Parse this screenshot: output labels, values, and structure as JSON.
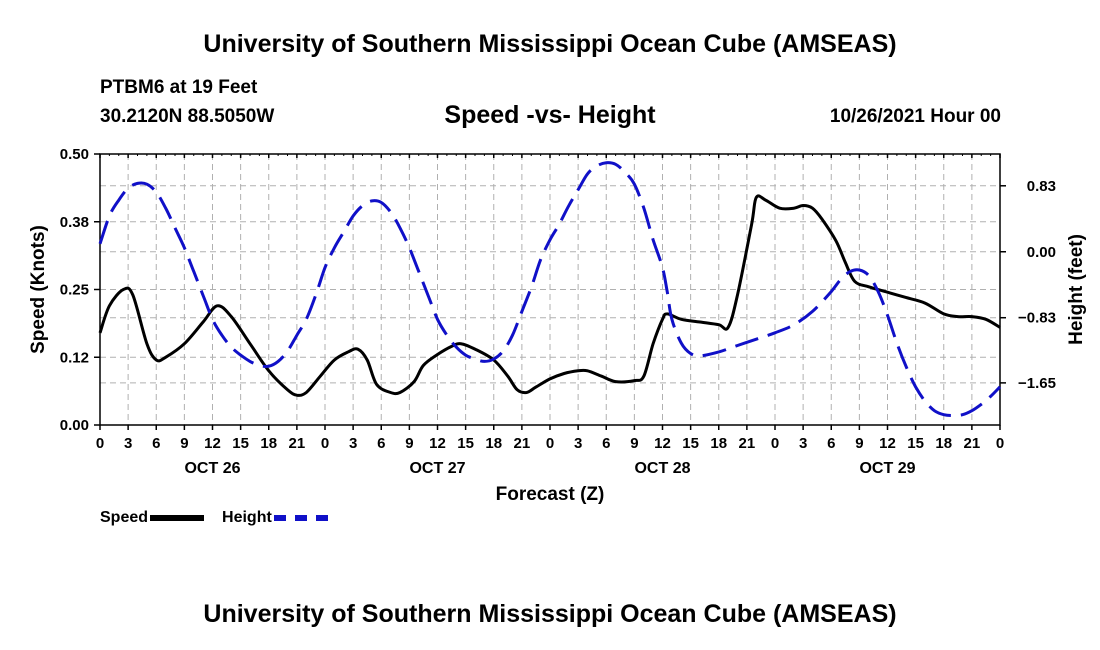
{
  "header": {
    "title_top": "University of Southern Mississippi Ocean Cube (AMSEAS)",
    "title_bottom": "University of Southern Mississippi Ocean Cube (AMSEAS)",
    "station": "PTBM6 at 19 Feet",
    "coords": "30.2120N  88.5050W",
    "subtitle": "Speed -vs- Height",
    "datetime": "10/26/2021 Hour 00"
  },
  "legend": {
    "speed_label": "Speed",
    "height_label": "Height"
  },
  "colors": {
    "speed": "#000000",
    "height": "#1010c8",
    "grid": "#b0b0b0"
  },
  "chart_data": {
    "type": "line",
    "xlabel": "Forecast (Z)",
    "ylabel_left": "Speed (Knots)",
    "ylabel_right": "Height (feet)",
    "x_range_hours": [
      0,
      96
    ],
    "ylim_left": [
      0,
      0.5
    ],
    "ylim_right": [
      -2.18,
      1.23
    ],
    "left_ticks": [
      {
        "value": 0.0,
        "label": "0.00"
      },
      {
        "value": 0.125,
        "label": "0.12"
      },
      {
        "value": 0.25,
        "label": "0.25"
      },
      {
        "value": 0.375,
        "label": "0.38"
      },
      {
        "value": 0.5,
        "label": "0.50"
      }
    ],
    "right_ticks": [
      {
        "value": 0.83,
        "label": "0.83"
      },
      {
        "value": 0.0,
        "label": "0.00"
      },
      {
        "value": -0.83,
        "label": "−0.83"
      },
      {
        "value": -1.65,
        "label": "−1.65"
      }
    ],
    "x_ticks": [
      {
        "hour": 0,
        "label": "0"
      },
      {
        "hour": 3,
        "label": "3"
      },
      {
        "hour": 6,
        "label": "6"
      },
      {
        "hour": 9,
        "label": "9"
      },
      {
        "hour": 12,
        "label": "12"
      },
      {
        "hour": 15,
        "label": "15"
      },
      {
        "hour": 18,
        "label": "18"
      },
      {
        "hour": 21,
        "label": "21"
      },
      {
        "hour": 24,
        "label": "0"
      },
      {
        "hour": 27,
        "label": "3"
      },
      {
        "hour": 30,
        "label": "6"
      },
      {
        "hour": 33,
        "label": "9"
      },
      {
        "hour": 36,
        "label": "12"
      },
      {
        "hour": 39,
        "label": "15"
      },
      {
        "hour": 42,
        "label": "18"
      },
      {
        "hour": 45,
        "label": "21"
      },
      {
        "hour": 48,
        "label": "0"
      },
      {
        "hour": 51,
        "label": "3"
      },
      {
        "hour": 54,
        "label": "6"
      },
      {
        "hour": 57,
        "label": "9"
      },
      {
        "hour": 60,
        "label": "12"
      },
      {
        "hour": 63,
        "label": "15"
      },
      {
        "hour": 66,
        "label": "18"
      },
      {
        "hour": 69,
        "label": "21"
      },
      {
        "hour": 72,
        "label": "0"
      },
      {
        "hour": 75,
        "label": "3"
      },
      {
        "hour": 78,
        "label": "6"
      },
      {
        "hour": 81,
        "label": "9"
      },
      {
        "hour": 84,
        "label": "12"
      },
      {
        "hour": 87,
        "label": "15"
      },
      {
        "hour": 90,
        "label": "18"
      },
      {
        "hour": 93,
        "label": "21"
      },
      {
        "hour": 96,
        "label": "0"
      }
    ],
    "day_labels": [
      {
        "hour": 12,
        "label": "OCT 26"
      },
      {
        "hour": 36,
        "label": "OCT 27"
      },
      {
        "hour": 60,
        "label": "OCT 28"
      },
      {
        "hour": 84,
        "label": "OCT 29"
      }
    ],
    "series": [
      {
        "name": "Speed",
        "axis": "left",
        "style": "solid",
        "points": [
          [
            0,
            0.17
          ],
          [
            1,
            0.22
          ],
          [
            2.5,
            0.25
          ],
          [
            3.5,
            0.24
          ],
          [
            5,
            0.15
          ],
          [
            6,
            0.12
          ],
          [
            7,
            0.125
          ],
          [
            9,
            0.15
          ],
          [
            11,
            0.19
          ],
          [
            12.5,
            0.22
          ],
          [
            14,
            0.2
          ],
          [
            16,
            0.15
          ],
          [
            18,
            0.1
          ],
          [
            20,
            0.065
          ],
          [
            21,
            0.055
          ],
          [
            22,
            0.06
          ],
          [
            23.5,
            0.09
          ],
          [
            25,
            0.12
          ],
          [
            26.5,
            0.135
          ],
          [
            27.5,
            0.14
          ],
          [
            28.5,
            0.12
          ],
          [
            29.5,
            0.075
          ],
          [
            31,
            0.06
          ],
          [
            32,
            0.06
          ],
          [
            33.5,
            0.08
          ],
          [
            34.5,
            0.11
          ],
          [
            36,
            0.13
          ],
          [
            37.5,
            0.145
          ],
          [
            38.5,
            0.15
          ],
          [
            40,
            0.14
          ],
          [
            42,
            0.12
          ],
          [
            43.5,
            0.09
          ],
          [
            44.5,
            0.065
          ],
          [
            45.5,
            0.06
          ],
          [
            46.5,
            0.07
          ],
          [
            48,
            0.085
          ],
          [
            49.5,
            0.095
          ],
          [
            51,
            0.1
          ],
          [
            52,
            0.1
          ],
          [
            53.5,
            0.09
          ],
          [
            55,
            0.08
          ],
          [
            57,
            0.082
          ],
          [
            58,
            0.09
          ],
          [
            59,
            0.15
          ],
          [
            60,
            0.195
          ],
          [
            60.5,
            0.205
          ],
          [
            62,
            0.195
          ],
          [
            64,
            0.19
          ],
          [
            66,
            0.185
          ],
          [
            67,
            0.18
          ],
          [
            68,
            0.24
          ],
          [
            69.5,
            0.37
          ],
          [
            70,
            0.42
          ],
          [
            71,
            0.415
          ],
          [
            72.5,
            0.4
          ],
          [
            74,
            0.4
          ],
          [
            75,
            0.405
          ],
          [
            76,
            0.4
          ],
          [
            77,
            0.38
          ],
          [
            78.5,
            0.34
          ],
          [
            79.5,
            0.3
          ],
          [
            80.5,
            0.265
          ],
          [
            82,
            0.255
          ],
          [
            84,
            0.245
          ],
          [
            86,
            0.235
          ],
          [
            88,
            0.225
          ],
          [
            90,
            0.205
          ],
          [
            91.5,
            0.2
          ],
          [
            93,
            0.2
          ],
          [
            94.5,
            0.195
          ],
          [
            96,
            0.18
          ]
        ]
      },
      {
        "name": "Height",
        "axis": "right",
        "style": "dashed",
        "points": [
          [
            0,
            0.1
          ],
          [
            1,
            0.45
          ],
          [
            2,
            0.65
          ],
          [
            3,
            0.8
          ],
          [
            4,
            0.86
          ],
          [
            5,
            0.85
          ],
          [
            6,
            0.75
          ],
          [
            7,
            0.55
          ],
          [
            8,
            0.3
          ],
          [
            9,
            0.05
          ],
          [
            10,
            -0.25
          ],
          [
            11,
            -0.55
          ],
          [
            12,
            -0.85
          ],
          [
            13,
            -1.05
          ],
          [
            14,
            -1.2
          ],
          [
            15,
            -1.3
          ],
          [
            16,
            -1.38
          ],
          [
            17,
            -1.43
          ],
          [
            18,
            -1.44
          ],
          [
            19,
            -1.38
          ],
          [
            20,
            -1.25
          ],
          [
            21,
            -1.05
          ],
          [
            22,
            -0.85
          ],
          [
            23,
            -0.55
          ],
          [
            24,
            -0.2
          ],
          [
            25,
            0.05
          ],
          [
            26,
            0.25
          ],
          [
            27,
            0.45
          ],
          [
            28,
            0.58
          ],
          [
            29,
            0.64
          ],
          [
            30,
            0.62
          ],
          [
            31,
            0.5
          ],
          [
            32,
            0.3
          ],
          [
            33,
            0.05
          ],
          [
            34,
            -0.25
          ],
          [
            35,
            -0.55
          ],
          [
            36,
            -0.85
          ],
          [
            37,
            -1.05
          ],
          [
            38,
            -1.2
          ],
          [
            39,
            -1.3
          ],
          [
            40,
            -1.35
          ],
          [
            41,
            -1.38
          ],
          [
            42,
            -1.35
          ],
          [
            43,
            -1.25
          ],
          [
            44,
            -1.05
          ],
          [
            45,
            -0.75
          ],
          [
            46,
            -0.45
          ],
          [
            47,
            -0.1
          ],
          [
            48,
            0.15
          ],
          [
            49,
            0.35
          ],
          [
            50,
            0.58
          ],
          [
            51,
            0.78
          ],
          [
            52,
            0.98
          ],
          [
            53,
            1.08
          ],
          [
            54,
            1.12
          ],
          [
            55,
            1.1
          ],
          [
            56,
            1.0
          ],
          [
            57,
            0.85
          ],
          [
            58,
            0.55
          ],
          [
            59,
            0.15
          ],
          [
            60,
            -0.2
          ],
          [
            60.5,
            -0.5
          ],
          [
            61,
            -0.85
          ],
          [
            62,
            -1.15
          ],
          [
            63,
            -1.28
          ],
          [
            64,
            -1.31
          ],
          [
            66,
            -1.26
          ],
          [
            68,
            -1.18
          ],
          [
            70,
            -1.1
          ],
          [
            72,
            -1.02
          ],
          [
            74,
            -0.92
          ],
          [
            76,
            -0.75
          ],
          [
            78,
            -0.5
          ],
          [
            79,
            -0.35
          ],
          [
            80,
            -0.25
          ],
          [
            81,
            -0.23
          ],
          [
            82,
            -0.3
          ],
          [
            83,
            -0.5
          ],
          [
            84,
            -0.8
          ],
          [
            85,
            -1.15
          ],
          [
            86,
            -1.45
          ],
          [
            87,
            -1.7
          ],
          [
            88,
            -1.88
          ],
          [
            89,
            -2.0
          ],
          [
            90,
            -2.05
          ],
          [
            91,
            -2.06
          ],
          [
            92,
            -2.05
          ],
          [
            93,
            -2.0
          ],
          [
            94,
            -1.92
          ],
          [
            95,
            -1.82
          ],
          [
            96,
            -1.7
          ]
        ]
      }
    ]
  }
}
